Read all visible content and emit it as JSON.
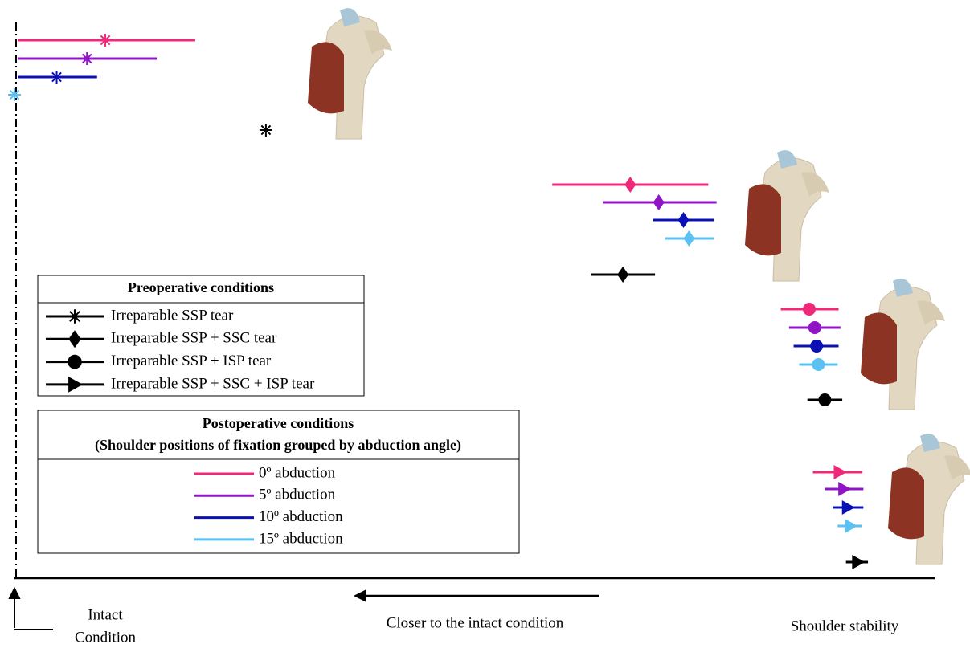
{
  "chart_data": {
    "type": "interval",
    "xlim": [
      0,
      100
    ],
    "groups": [
      {
        "name": "Irreparable SSP tear",
        "marker": "star",
        "preop": {
          "value": 27.4,
          "low": null,
          "high": null
        }
      },
      {
        "name": "Irreparable SSP + SSC tear",
        "marker": "diamond",
        "preop": {
          "value": 66.3,
          "low": 62.8,
          "high": 69.8
        }
      },
      {
        "name": "Irreparable SSP + ISP tear",
        "marker": "circle",
        "preop": {
          "value": 88.3,
          "low": 86.4,
          "high": 90.2
        }
      },
      {
        "name": "Irreparable SSP + SSC + ISP tear",
        "marker": "triangle",
        "preop": {
          "value": 91.9,
          "low": 90.6,
          "high": 93.0
        }
      }
    ],
    "preop_color": "#000000",
    "series": [
      {
        "name": "0º abduction",
        "color": "#f0287a",
        "values": [
          9.9,
          67.1,
          86.6,
          89.9
        ],
        "low": [
          0.35,
          58.6,
          83.5,
          87.0
        ],
        "high": [
          19.7,
          75.6,
          89.8,
          92.4
        ]
      },
      {
        "name": "5º abduction",
        "color": "#9013c8",
        "values": [
          7.9,
          70.2,
          87.2,
          90.4
        ],
        "low": [
          0.35,
          64.1,
          84.4,
          88.3
        ],
        "high": [
          15.5,
          76.5,
          90.0,
          92.5
        ]
      },
      {
        "name": "10º abduction",
        "color": "#0a10b4",
        "values": [
          4.6,
          72.9,
          87.4,
          90.8
        ],
        "low": [
          0.35,
          69.6,
          84.9,
          89.2
        ],
        "high": [
          9.0,
          76.2,
          89.8,
          92.5
        ]
      },
      {
        "name": "15º abduction",
        "color": "#5bc0f2",
        "values": [
          0,
          73.5,
          87.6,
          91.1
        ],
        "low": [
          null,
          70.9,
          85.5,
          89.7
        ],
        "high": [
          null,
          76.2,
          89.7,
          92.3
        ]
      }
    ],
    "legend_preop_title": "Preoperative conditions",
    "legend_postop_title": [
      "Postoperative conditions",
      "(Shoulder positions of fixation grouped by abduction angle)"
    ],
    "origin_label": [
      "Intact",
      "Condition"
    ],
    "arrow_label": "Closer to the intact condition",
    "x_label": "Shoulder stability"
  }
}
